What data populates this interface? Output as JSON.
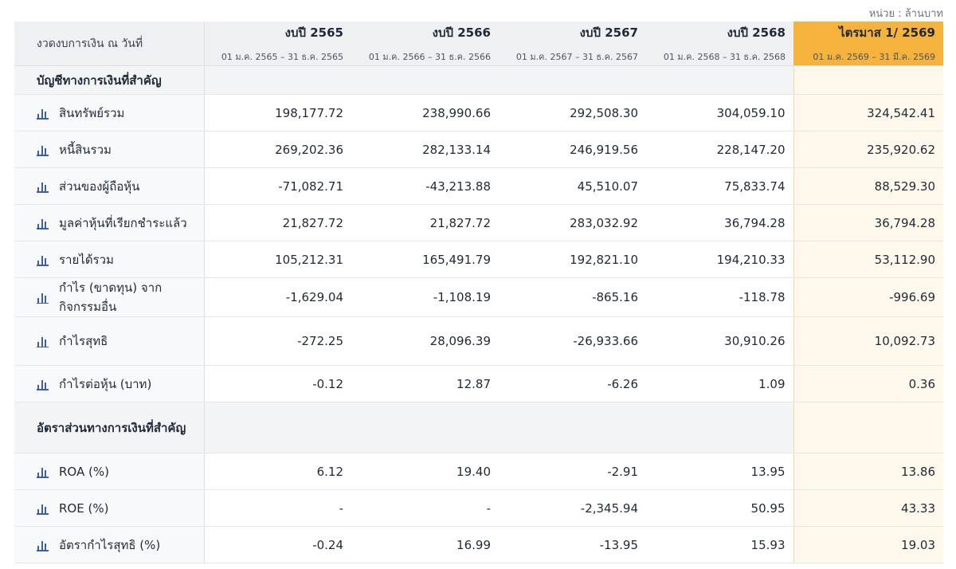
{
  "unit_label": "หน่วย : ล้านบาท",
  "header": {
    "label": "งวดงบการเงิน ณ วันที่",
    "periods": [
      {
        "title": "งบปี 2565",
        "range": "01 ม.ค. 2565 – 31 ธ.ค. 2565"
      },
      {
        "title": "งบปี 2566",
        "range": "01 ม.ค. 2566 – 31 ธ.ค. 2566"
      },
      {
        "title": "งบปี 2567",
        "range": "01 ม.ค. 2567 – 31 ธ.ค. 2567"
      },
      {
        "title": "งบปี 2568",
        "range": "01 ม.ค. 2568 – 31 ธ.ค. 2568"
      },
      {
        "title": "ไตรมาส 1/ 2569",
        "range": "01 ม.ค. 2569 – 31 มี.ค. 2569"
      }
    ]
  },
  "sections": [
    {
      "title": "บัญชีทางการเงินที่สำคัญ",
      "rows": [
        {
          "label": "สินทรัพย์รวม",
          "values": [
            "198,177.72",
            "238,990.66",
            "292,508.30",
            "304,059.10",
            "324,542.41"
          ]
        },
        {
          "label": "หนี้สินรวม",
          "values": [
            "269,202.36",
            "282,133.14",
            "246,919.56",
            "228,147.20",
            "235,920.62"
          ]
        },
        {
          "label": "ส่วนของผู้ถือหุ้น",
          "values": [
            "-71,082.71",
            "-43,213.88",
            "45,510.07",
            "75,833.74",
            "88,529.30"
          ]
        },
        {
          "label": "มูลค่าหุ้นที่เรียกชำระแล้ว",
          "values": [
            "21,827.72",
            "21,827.72",
            "283,032.92",
            "36,794.28",
            "36,794.28"
          ]
        },
        {
          "label": "รายได้รวม",
          "values": [
            "105,212.31",
            "165,491.79",
            "192,821.10",
            "194,210.33",
            "53,112.90"
          ]
        },
        {
          "label": "กำไร (ขาดทุน) จาก กิจกรรมอื่น",
          "values": [
            "-1,629.04",
            "-1,108.19",
            "-865.16",
            "-118.78",
            "-996.69"
          ]
        },
        {
          "label": "กำไรสุทธิ",
          "values": [
            "-272.25",
            "28,096.39",
            "-26,933.66",
            "30,910.26",
            "10,092.73"
          ]
        },
        {
          "label": "กำไรต่อหุ้น (บาท)",
          "values": [
            "-0.12",
            "12.87",
            "-6.26",
            "1.09",
            "0.36"
          ]
        }
      ]
    },
    {
      "title": "อัตราส่วนทางการเงินที่สำคัญ",
      "rows": [
        {
          "label": "ROA (%)",
          "values": [
            "6.12",
            "19.40",
            "-2.91",
            "13.95",
            "13.86"
          ]
        },
        {
          "label": "ROE (%)",
          "values": [
            "-",
            "-",
            "-2,345.94",
            "50.95",
            "43.33"
          ]
        },
        {
          "label": "อัตรากำไรสุทธิ (%)",
          "values": [
            "-0.24",
            "16.99",
            "-13.95",
            "15.93",
            "19.03"
          ]
        }
      ]
    }
  ]
}
